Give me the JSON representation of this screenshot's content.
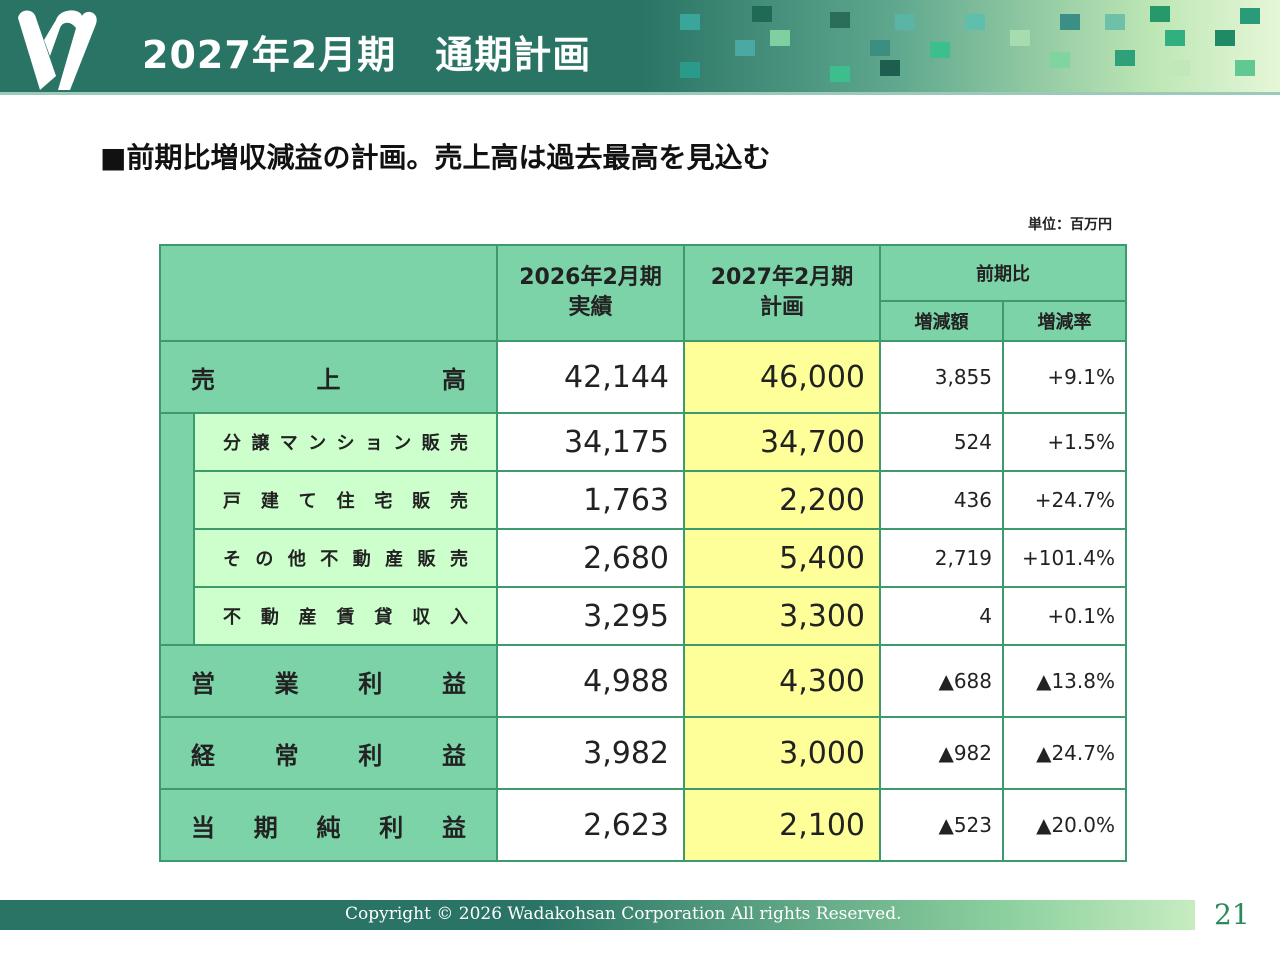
{
  "header": {
    "title": "2027年2月期　通期計画"
  },
  "subtitle": "■前期比増収減益の計画。売上高は過去最高を見込む",
  "unit": "単位：百万円",
  "table": {
    "col_prev": [
      "2026年2月期",
      "実績"
    ],
    "col_plan": [
      "2027年2月期",
      "計画"
    ],
    "col_yoy": "前期比",
    "col_diff": "増減額",
    "col_rate": "増減率",
    "rows": [
      {
        "label": [
          "売",
          "上",
          "高"
        ],
        "prev": "42,144",
        "plan": "46,000",
        "diff": "3,855",
        "rate": "+9.1%"
      },
      {
        "label": [
          "分",
          "譲",
          "マ",
          "ン",
          "シ",
          "ョ",
          "ン",
          "販",
          "売"
        ],
        "prev": "34,175",
        "plan": "34,700",
        "diff": "524",
        "rate": "+1.5%"
      },
      {
        "label": [
          "戸",
          "建",
          "て",
          "住",
          "宅",
          "販",
          "売"
        ],
        "prev": "1,763",
        "plan": "2,200",
        "diff": "436",
        "rate": "+24.7%"
      },
      {
        "label": [
          "そ",
          "の",
          "他",
          "不",
          "動",
          "産",
          "販",
          "売"
        ],
        "prev": "2,680",
        "plan": "5,400",
        "diff": "2,719",
        "rate": "+101.4%"
      },
      {
        "label": [
          "不",
          "動",
          "産",
          "賃",
          "貸",
          "収",
          "入"
        ],
        "prev": "3,295",
        "plan": "3,300",
        "diff": "4",
        "rate": "+0.1%"
      },
      {
        "label": [
          "営",
          "業",
          "利",
          "益"
        ],
        "prev": "4,988",
        "plan": "4,300",
        "diff": "▲688",
        "rate": "▲13.8%"
      },
      {
        "label": [
          "経",
          "常",
          "利",
          "益"
        ],
        "prev": "3,982",
        "plan": "3,000",
        "diff": "▲982",
        "rate": "▲24.7%"
      },
      {
        "label": [
          "当",
          "期",
          "純",
          "利",
          "益"
        ],
        "prev": "2,623",
        "plan": "2,100",
        "diff": "▲523",
        "rate": "▲20.0%"
      }
    ]
  },
  "footer": {
    "copyright": "Copyright © 2026  Wadakohsan Corporation All rights Reserved.",
    "page": "21"
  }
}
